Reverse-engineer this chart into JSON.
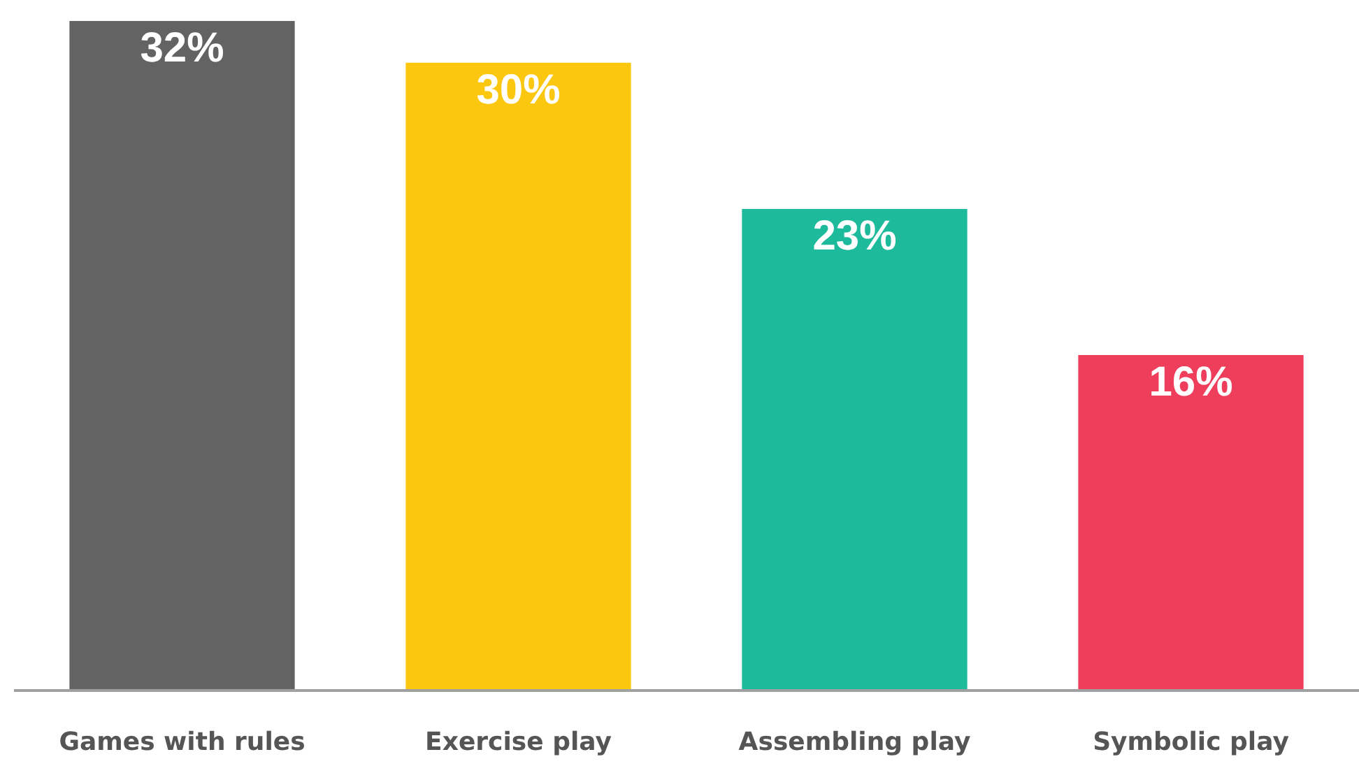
{
  "chart_data": {
    "type": "bar",
    "categories": [
      "Games with rules",
      "Exercise play",
      "Assembling play",
      "Symbolic play"
    ],
    "values": [
      32,
      30,
      23,
      16
    ],
    "value_labels": [
      "32%",
      "30%",
      "23%",
      "16%"
    ],
    "colors": [
      "#636363",
      "#fcc70f",
      "#1dba9c",
      "#ef3e5b"
    ],
    "ylim": [
      0,
      32
    ],
    "tick_labels": "x",
    "legend": false
  }
}
